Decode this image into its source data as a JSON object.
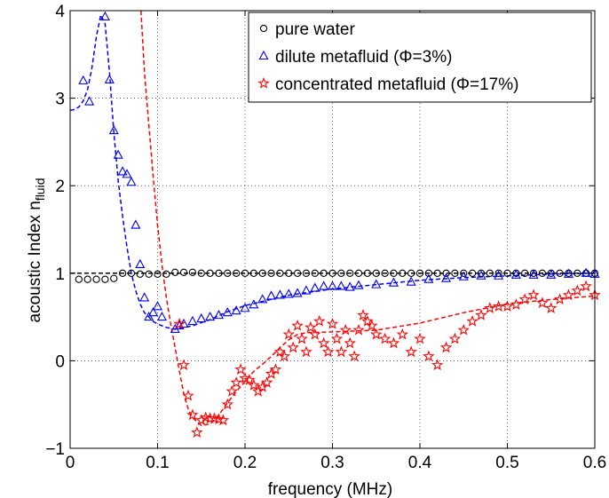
{
  "chart_data": {
    "type": "scatter",
    "xlabel": "frequency (MHz)",
    "ylabel_main": "acoustic Index n",
    "ylabel_sub": "fluid",
    "xlim": [
      0,
      0.6
    ],
    "ylim": [
      -1,
      4
    ],
    "xticks": [
      "0",
      "0.1",
      "0.2",
      "0.3",
      "0.4",
      "0.5",
      "0.6"
    ],
    "yticks": [
      "−1",
      "0",
      "1",
      "2",
      "3",
      "4"
    ],
    "grid": true,
    "legend_position": "top-right",
    "series": [
      {
        "name": "pure water",
        "marker": "circle",
        "color": "#000000",
        "x": [
          0.01,
          0.02,
          0.03,
          0.04,
          0.05,
          0.06,
          0.07,
          0.08,
          0.09,
          0.1,
          0.11,
          0.12,
          0.13,
          0.14,
          0.15,
          0.16,
          0.17,
          0.18,
          0.19,
          0.2,
          0.21,
          0.22,
          0.23,
          0.24,
          0.25,
          0.26,
          0.27,
          0.28,
          0.29,
          0.3,
          0.31,
          0.32,
          0.33,
          0.34,
          0.35,
          0.36,
          0.37,
          0.38,
          0.39,
          0.4,
          0.41,
          0.42,
          0.43,
          0.44,
          0.45,
          0.46,
          0.47,
          0.48,
          0.49,
          0.5,
          0.51,
          0.52,
          0.53,
          0.54,
          0.55,
          0.56,
          0.57,
          0.58,
          0.59,
          0.6
        ],
        "y": [
          0.93,
          0.93,
          0.93,
          0.93,
          0.94,
          1.0,
          1.0,
          0.99,
          0.99,
          0.99,
          0.99,
          1.01,
          1.01,
          1.01,
          1.0,
          1.0,
          1.0,
          1.0,
          1.0,
          1.0,
          1.0,
          1.0,
          1.0,
          1.0,
          1.0,
          1.0,
          1.0,
          1.0,
          1.0,
          1.0,
          1.0,
          1.0,
          1.0,
          1.0,
          1.0,
          1.0,
          1.0,
          1.0,
          1.0,
          1.0,
          1.0,
          1.0,
          1.0,
          1.0,
          1.0,
          1.0,
          1.0,
          1.0,
          1.0,
          1.0,
          1.0,
          1.0,
          1.0,
          1.0,
          1.0,
          1.0,
          1.0,
          1.0,
          1.0,
          1.0
        ]
      },
      {
        "name": "dilute metafluid (Φ=3%)",
        "marker": "triangle",
        "color": "#0000ff",
        "x": [
          0.015,
          0.022,
          0.04,
          0.045,
          0.05,
          0.055,
          0.06,
          0.065,
          0.07,
          0.075,
          0.08,
          0.085,
          0.09,
          0.095,
          0.1,
          0.105,
          0.12,
          0.125,
          0.13,
          0.14,
          0.15,
          0.16,
          0.17,
          0.18,
          0.19,
          0.2,
          0.21,
          0.22,
          0.23,
          0.24,
          0.25,
          0.26,
          0.27,
          0.28,
          0.29,
          0.3,
          0.31,
          0.32,
          0.33,
          0.35,
          0.37,
          0.39,
          0.41,
          0.43,
          0.45,
          0.47,
          0.49,
          0.51,
          0.53,
          0.55,
          0.57,
          0.59,
          0.6
        ],
        "y": [
          3.2,
          2.96,
          3.93,
          3.21,
          2.63,
          2.35,
          2.16,
          2.13,
          2.04,
          1.55,
          1.1,
          0.72,
          0.5,
          0.55,
          0.62,
          0.5,
          0.36,
          0.4,
          0.42,
          0.45,
          0.48,
          0.5,
          0.52,
          0.55,
          0.57,
          0.6,
          0.64,
          0.7,
          0.74,
          0.75,
          0.76,
          0.77,
          0.8,
          0.83,
          0.85,
          0.85,
          0.85,
          0.84,
          0.86,
          0.87,
          0.89,
          0.9,
          0.93,
          0.94,
          0.96,
          0.97,
          0.97,
          0.98,
          0.98,
          0.98,
          0.99,
          1.0,
          0.99
        ]
      },
      {
        "name": "concentrated metafluid (Φ=17%)",
        "marker": "star",
        "color": "#ff0000",
        "x": [
          0.125,
          0.13,
          0.135,
          0.14,
          0.145,
          0.15,
          0.155,
          0.16,
          0.165,
          0.17,
          0.175,
          0.18,
          0.185,
          0.19,
          0.195,
          0.2,
          0.205,
          0.21,
          0.215,
          0.22,
          0.225,
          0.23,
          0.235,
          0.24,
          0.245,
          0.25,
          0.255,
          0.26,
          0.265,
          0.27,
          0.275,
          0.28,
          0.285,
          0.29,
          0.295,
          0.3,
          0.305,
          0.31,
          0.315,
          0.32,
          0.325,
          0.33,
          0.335,
          0.34,
          0.345,
          0.35,
          0.36,
          0.37,
          0.38,
          0.39,
          0.4,
          0.41,
          0.42,
          0.43,
          0.44,
          0.45,
          0.46,
          0.47,
          0.48,
          0.49,
          0.5,
          0.51,
          0.52,
          0.53,
          0.54,
          0.55,
          0.56,
          0.57,
          0.58,
          0.59,
          0.6
        ],
        "y": [
          0.42,
          -0.05,
          -0.4,
          -0.62,
          -0.82,
          -0.68,
          -0.65,
          -0.66,
          -0.66,
          -0.67,
          -0.68,
          -0.5,
          -0.35,
          -0.25,
          -0.1,
          -0.2,
          -0.22,
          -0.28,
          -0.35,
          -0.3,
          -0.25,
          -0.15,
          -0.1,
          0.1,
          0.05,
          0.3,
          0.15,
          0.4,
          0.25,
          0.1,
          0.38,
          0.3,
          0.45,
          0.2,
          0.1,
          0.42,
          0.25,
          0.1,
          0.35,
          0.2,
          0.05,
          0.35,
          0.52,
          0.45,
          0.4,
          0.3,
          0.25,
          0.2,
          0.3,
          0.1,
          0.25,
          0.05,
          -0.05,
          0.15,
          0.25,
          0.35,
          0.45,
          0.52,
          0.6,
          0.62,
          0.62,
          0.64,
          0.7,
          0.75,
          0.66,
          0.6,
          0.7,
          0.75,
          0.8,
          0.85,
          0.75
        ]
      }
    ],
    "fits": [
      {
        "name": "pure water fit",
        "color": "#000000",
        "x": [
          0.0,
          0.05,
          0.1,
          0.15,
          0.2,
          0.25,
          0.3,
          0.35,
          0.4,
          0.45,
          0.5,
          0.55,
          0.6
        ],
        "y": [
          1.0,
          1.0,
          1.0,
          1.0,
          1.0,
          1.0,
          1.0,
          1.0,
          1.0,
          1.0,
          1.0,
          1.0,
          1.0
        ]
      },
      {
        "name": "dilute metafluid fit",
        "color": "#0000ff",
        "x": [
          0.0,
          0.005,
          0.01,
          0.015,
          0.02,
          0.025,
          0.03,
          0.035,
          0.04,
          0.045,
          0.05,
          0.055,
          0.06,
          0.065,
          0.07,
          0.075,
          0.08,
          0.085,
          0.09,
          0.095,
          0.1,
          0.11,
          0.12,
          0.14,
          0.16,
          0.18,
          0.2,
          0.25,
          0.3,
          0.35,
          0.4,
          0.45,
          0.5,
          0.55,
          0.6
        ],
        "y": [
          2.86,
          2.87,
          2.9,
          2.97,
          3.1,
          3.35,
          3.7,
          3.95,
          3.85,
          3.3,
          2.6,
          2.05,
          1.65,
          1.3,
          1.0,
          0.8,
          0.65,
          0.55,
          0.5,
          0.45,
          0.42,
          0.38,
          0.36,
          0.4,
          0.47,
          0.56,
          0.63,
          0.75,
          0.82,
          0.87,
          0.92,
          0.95,
          0.97,
          0.99,
          1.0
        ]
      },
      {
        "name": "concentrated metafluid fit",
        "color": "#ff0000",
        "x": [
          0.081,
          0.085,
          0.09,
          0.095,
          0.1,
          0.105,
          0.11,
          0.115,
          0.12,
          0.125,
          0.13,
          0.135,
          0.14,
          0.15,
          0.16,
          0.17,
          0.18,
          0.19,
          0.2,
          0.21,
          0.22,
          0.23,
          0.24,
          0.25,
          0.26,
          0.27,
          0.3,
          0.35,
          0.4,
          0.45,
          0.5,
          0.55,
          0.6
        ],
        "y": [
          4.0,
          3.3,
          2.7,
          2.1,
          1.55,
          1.1,
          0.72,
          0.42,
          0.15,
          -0.12,
          -0.38,
          -0.55,
          -0.65,
          -0.74,
          -0.72,
          -0.62,
          -0.48,
          -0.35,
          -0.24,
          -0.12,
          -0.04,
          0.05,
          0.15,
          0.24,
          0.3,
          0.32,
          0.33,
          0.35,
          0.43,
          0.55,
          0.65,
          0.7,
          0.74
        ]
      }
    ]
  }
}
